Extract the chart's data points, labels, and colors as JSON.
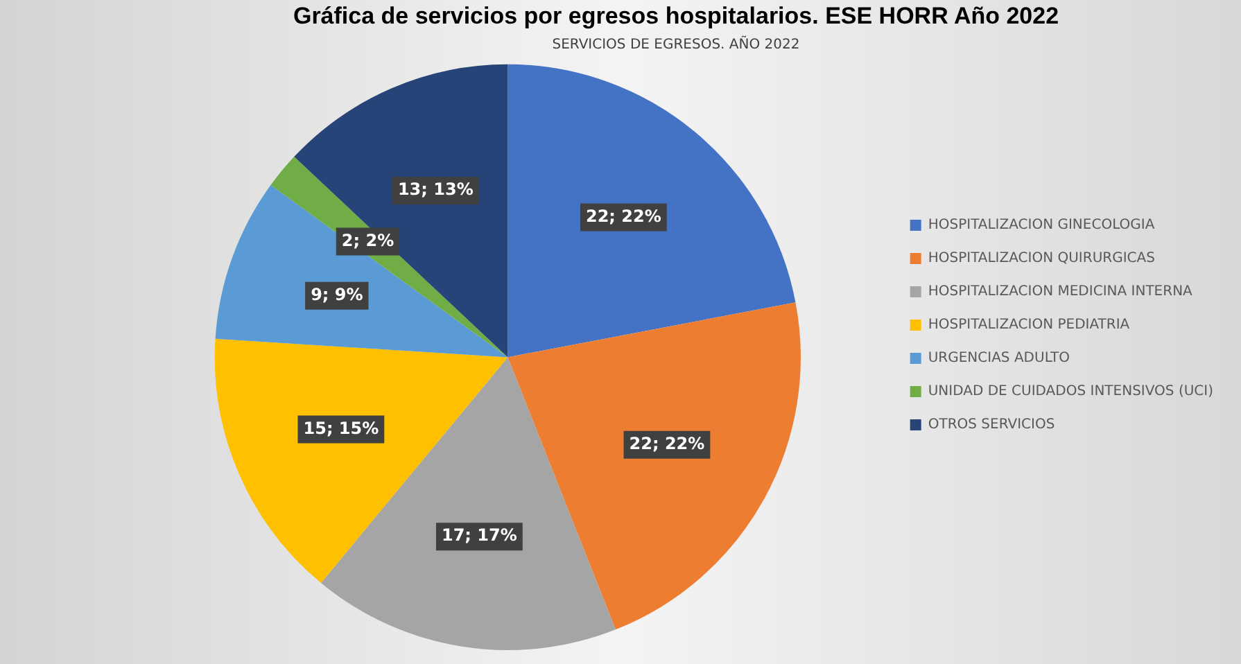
{
  "chart_data": {
    "type": "pie",
    "title": "Gráfica de servicios por egresos hospitalarios. ESE HORR Año 2022",
    "subtitle": "SERVICIOS DE EGRESOS. AÑO 2022",
    "categories": [
      "HOSPITALIZACION GINECOLOGIA",
      "HOSPITALIZACION QUIRURGICAS",
      "HOSPITALIZACION MEDICINA INTERNA",
      "HOSPITALIZACION PEDIATRIA",
      "URGENCIAS ADULTO",
      "UNIDAD DE CUIDADOS INTENSIVOS (UCI)",
      "OTROS SERVICIOS"
    ],
    "values": [
      22,
      22,
      17,
      15,
      9,
      2,
      13
    ],
    "colors": [
      "#4472c4",
      "#ed7d31",
      "#a5a5a5",
      "#ffc000",
      "#5b9bd5",
      "#70ad47",
      "#264478"
    ],
    "value_labels": [
      "22; 22%",
      "22; 22%",
      "17; 17%",
      "15; 15%",
      "9; 9%",
      "2; 2%",
      "13; 13%"
    ],
    "legend": "right"
  }
}
